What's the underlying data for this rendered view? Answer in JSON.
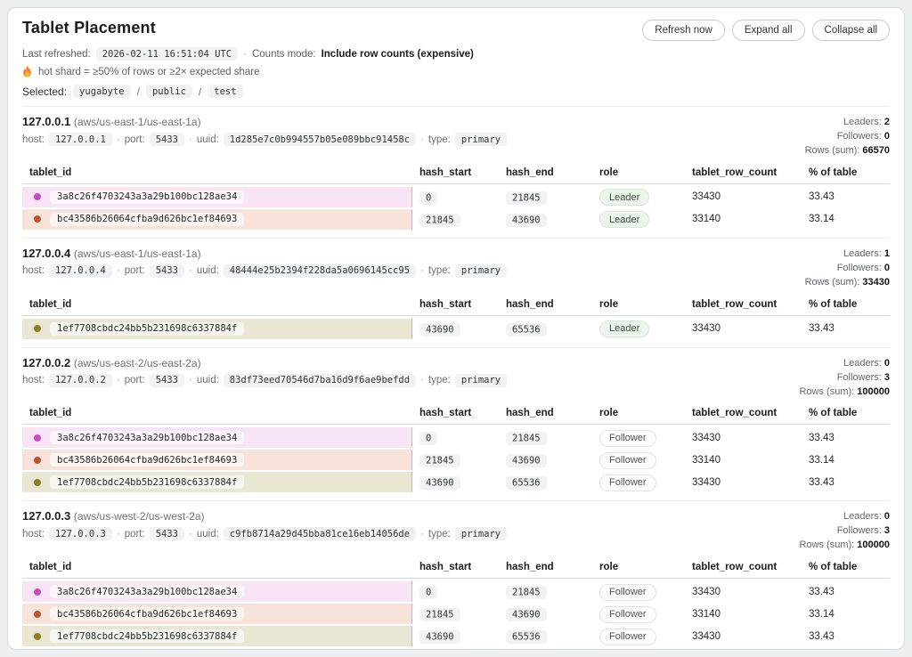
{
  "page": {
    "title": "Tablet Placement",
    "buttons": {
      "refresh": "Refresh now",
      "expand": "Expand all",
      "collapse": "Collapse all"
    },
    "last_refreshed_label": "Last refreshed:",
    "last_refreshed_value": "2026-02-11 16:51:04 UTC",
    "sep": "·",
    "counts_mode_label": "Counts mode:",
    "counts_mode_value": "Include row counts (expensive)",
    "hot_shard_note": "hot shard = ≥50% of rows or ≥2× expected share",
    "selected_label": "Selected:",
    "selected_path": [
      "yugabyte",
      "public",
      "test"
    ],
    "path_sep": "/"
  },
  "labels": {
    "host": "host:",
    "port": "port:",
    "uuid": "uuid:",
    "type": "type:",
    "leaders": "Leaders:",
    "followers": "Followers:",
    "rows_sum": "Rows (sum):"
  },
  "table_headers": [
    "tablet_id",
    "hash_start",
    "hash_end",
    "role",
    "tablet_row_count",
    "% of table"
  ],
  "colors": {
    "pink": {
      "bg": "#f8e4f5",
      "dot": "#c44ec0"
    },
    "salmon": {
      "bg": "#f8e3da",
      "dot": "#c2512e"
    },
    "olive": {
      "bg": "#e9e6d3",
      "dot": "#8f7d1d"
    }
  },
  "nodes": [
    {
      "name": "127.0.0.1",
      "zone": "(aws/us-east-1/us-east-1a)",
      "host": "127.0.0.1",
      "port": "5433",
      "uuid": "1d285e7c0b994557b05e089bbc91458c",
      "type": "primary",
      "leaders": "2",
      "followers": "0",
      "rows_sum": "66570",
      "rows": [
        {
          "tablet_id": "3a8c26f4703243a3a29b100bc128ae34",
          "color": "pink",
          "hash_start": "0",
          "hash_end": "21845",
          "role": "Leader",
          "row_count": "33430",
          "pct": "33.43"
        },
        {
          "tablet_id": "bc43586b26064cfba9d626bc1ef84693",
          "color": "salmon",
          "hash_start": "21845",
          "hash_end": "43690",
          "role": "Leader",
          "row_count": "33140",
          "pct": "33.14"
        }
      ]
    },
    {
      "name": "127.0.0.4",
      "zone": "(aws/us-east-1/us-east-1a)",
      "host": "127.0.0.4",
      "port": "5433",
      "uuid": "48444e25b2394f228da5a0696145cc95",
      "type": "primary",
      "leaders": "1",
      "followers": "0",
      "rows_sum": "33430",
      "rows": [
        {
          "tablet_id": "1ef7708cbdc24bb5b231698c6337884f",
          "color": "olive",
          "hash_start": "43690",
          "hash_end": "65536",
          "role": "Leader",
          "row_count": "33430",
          "pct": "33.43"
        }
      ]
    },
    {
      "name": "127.0.0.2",
      "zone": "(aws/us-east-2/us-east-2a)",
      "host": "127.0.0.2",
      "port": "5433",
      "uuid": "83df73eed70546d7ba16d9f6ae9befdd",
      "type": "primary",
      "leaders": "0",
      "followers": "3",
      "rows_sum": "100000",
      "rows": [
        {
          "tablet_id": "3a8c26f4703243a3a29b100bc128ae34",
          "color": "pink",
          "hash_start": "0",
          "hash_end": "21845",
          "role": "Follower",
          "row_count": "33430",
          "pct": "33.43"
        },
        {
          "tablet_id": "bc43586b26064cfba9d626bc1ef84693",
          "color": "salmon",
          "hash_start": "21845",
          "hash_end": "43690",
          "role": "Follower",
          "row_count": "33140",
          "pct": "33.14"
        },
        {
          "tablet_id": "1ef7708cbdc24bb5b231698c6337884f",
          "color": "olive",
          "hash_start": "43690",
          "hash_end": "65536",
          "role": "Follower",
          "row_count": "33430",
          "pct": "33.43"
        }
      ]
    },
    {
      "name": "127.0.0.3",
      "zone": "(aws/us-west-2/us-west-2a)",
      "host": "127.0.0.3",
      "port": "5433",
      "uuid": "c9fb8714a29d45bba81ce16eb14056de",
      "type": "primary",
      "leaders": "0",
      "followers": "3",
      "rows_sum": "100000",
      "rows": [
        {
          "tablet_id": "3a8c26f4703243a3a29b100bc128ae34",
          "color": "pink",
          "hash_start": "0",
          "hash_end": "21845",
          "role": "Follower",
          "row_count": "33430",
          "pct": "33.43"
        },
        {
          "tablet_id": "bc43586b26064cfba9d626bc1ef84693",
          "color": "salmon",
          "hash_start": "21845",
          "hash_end": "43690",
          "role": "Follower",
          "row_count": "33140",
          "pct": "33.14"
        },
        {
          "tablet_id": "1ef7708cbdc24bb5b231698c6337884f",
          "color": "olive",
          "hash_start": "43690",
          "hash_end": "65536",
          "role": "Follower",
          "row_count": "33430",
          "pct": "33.43"
        }
      ]
    }
  ]
}
